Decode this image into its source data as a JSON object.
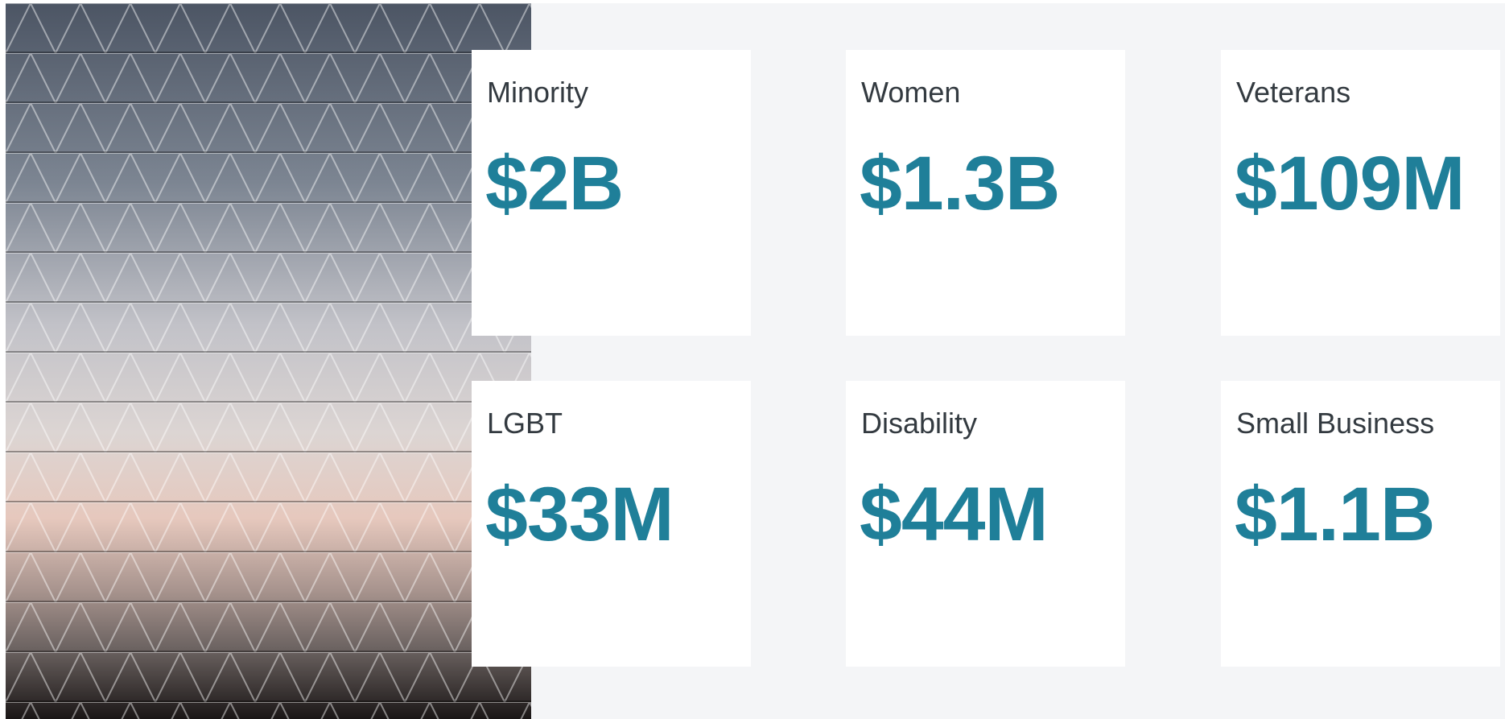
{
  "cards": [
    {
      "label": "Minority",
      "value": "$2B"
    },
    {
      "label": "Women",
      "value": "$1.3B"
    },
    {
      "label": "Veterans",
      "value": "$109M"
    },
    {
      "label": "LGBT",
      "value": "$33M"
    },
    {
      "label": "Disability",
      "value": "$44M"
    },
    {
      "label": "Small Business",
      "value": "$1.1B"
    }
  ]
}
